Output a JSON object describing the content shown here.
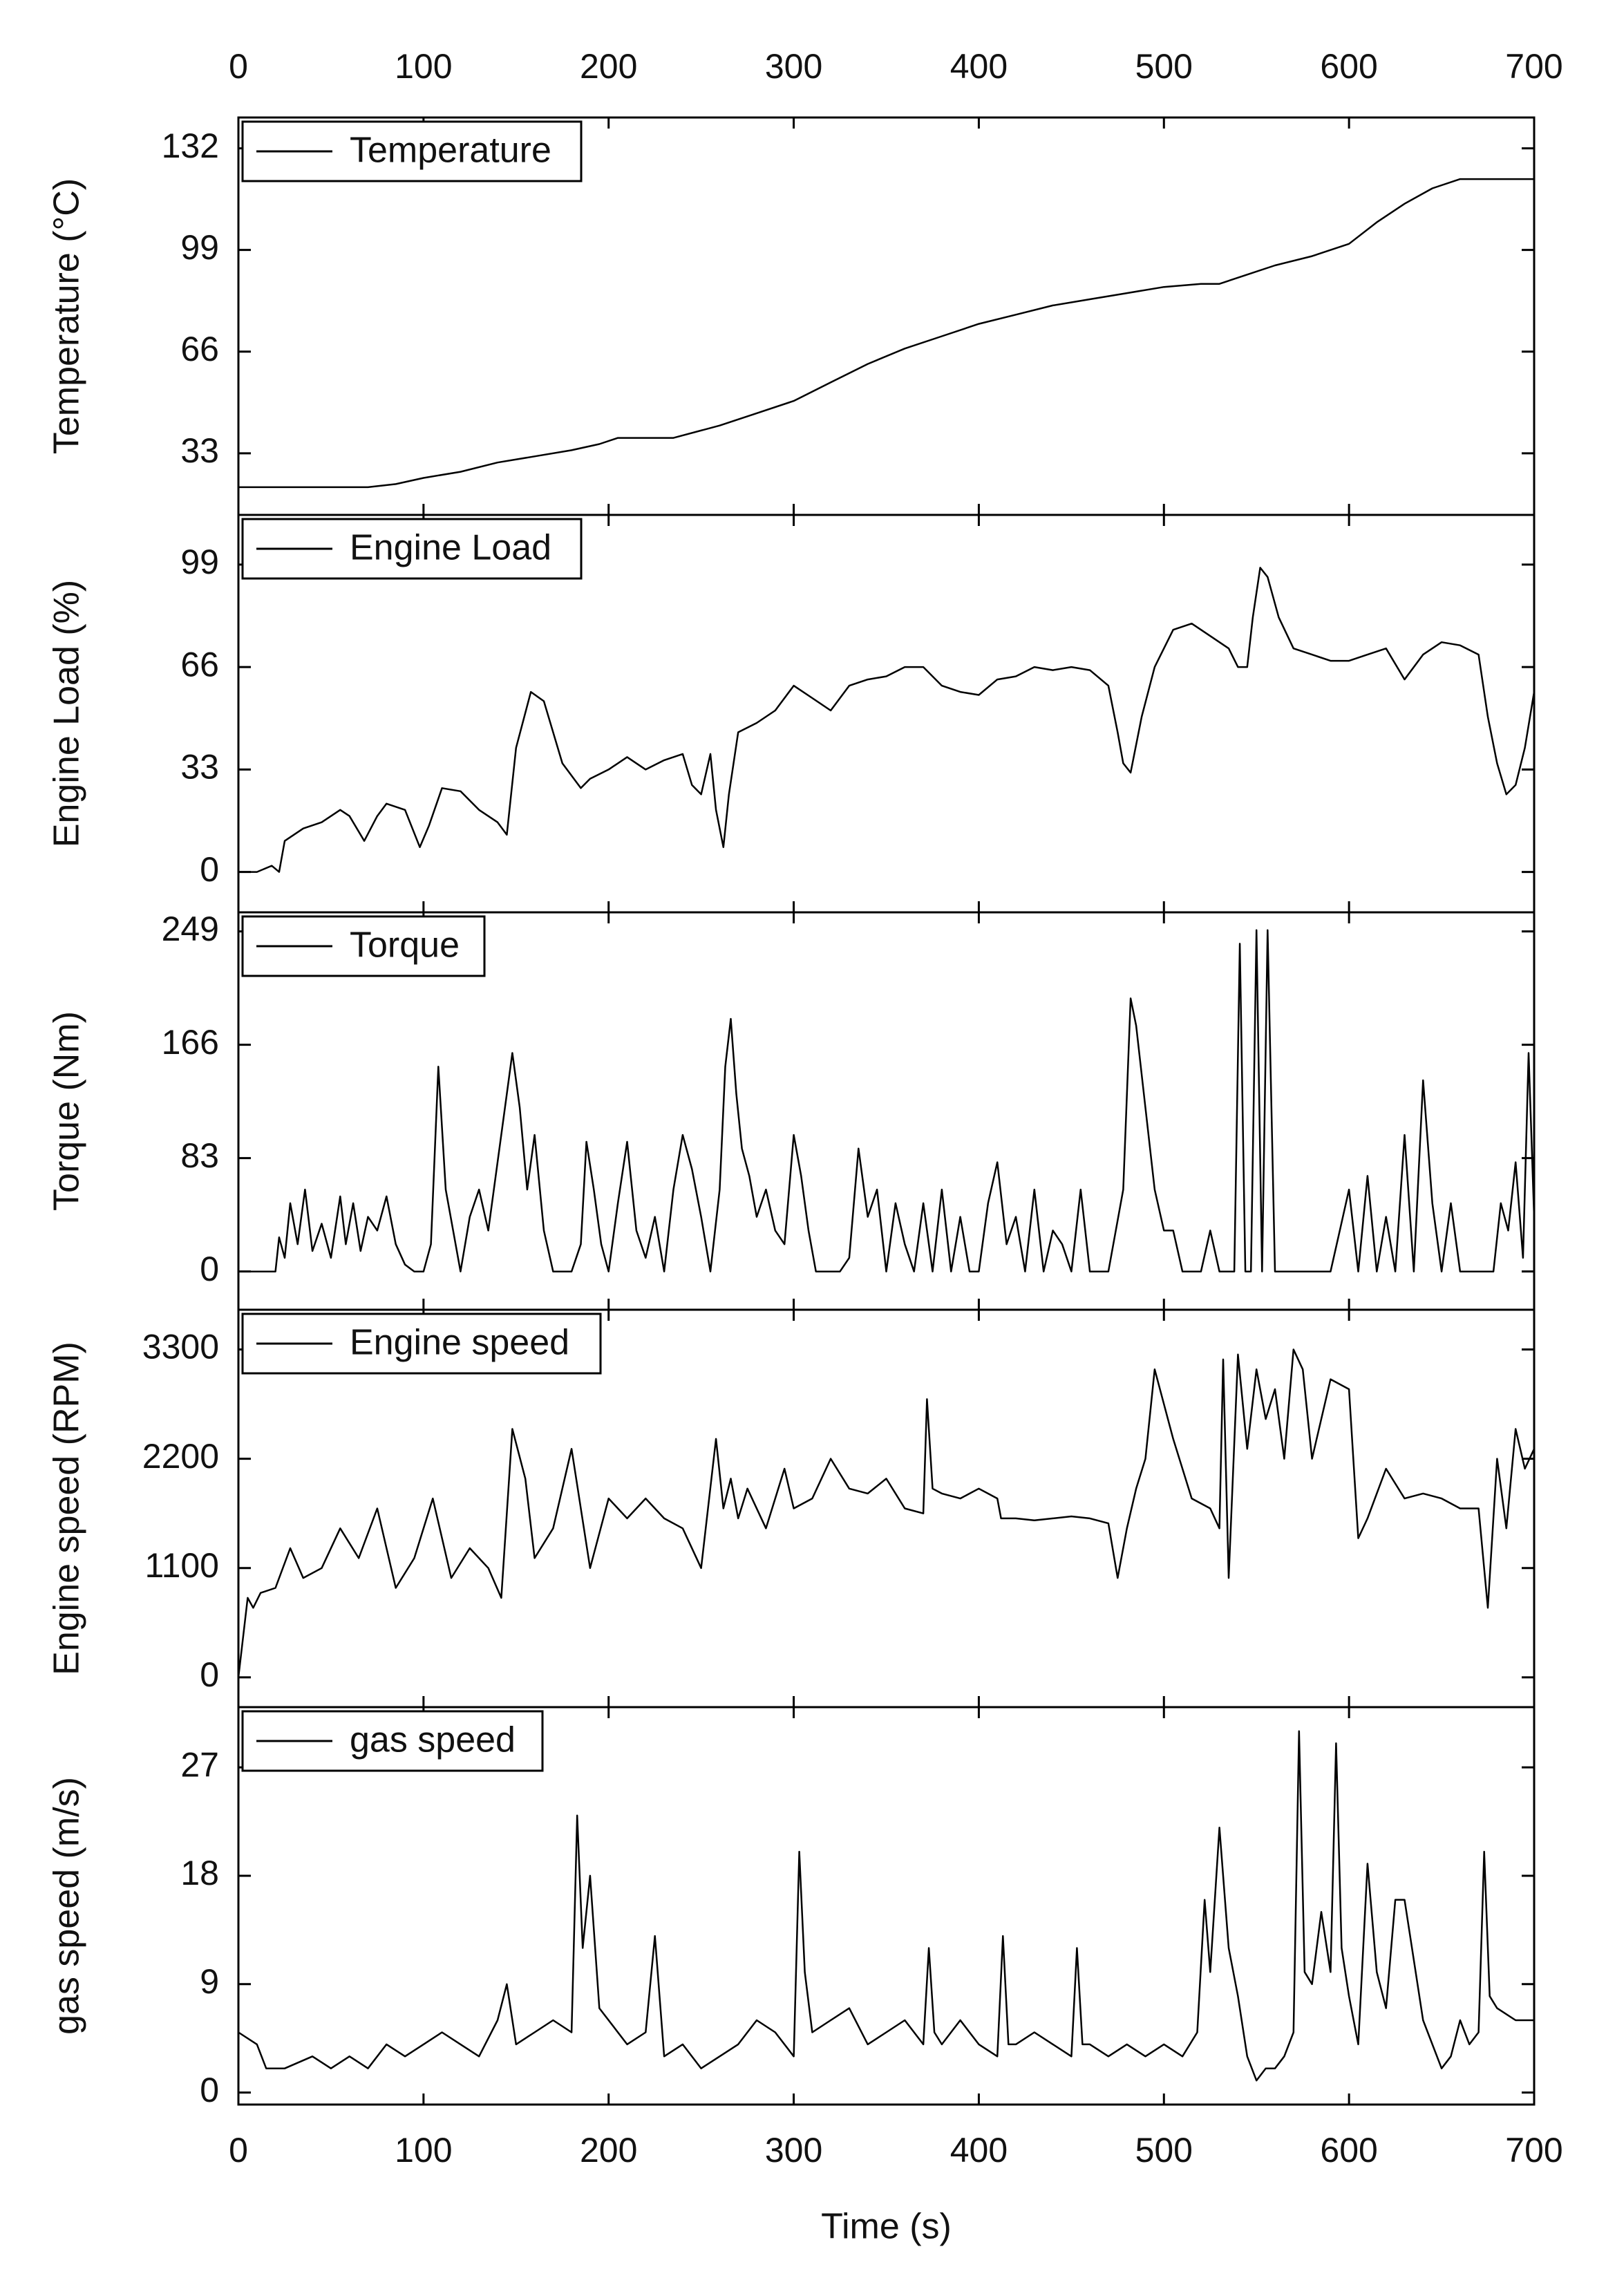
{
  "chart_data": {
    "type": "line",
    "layout": "stacked-panels-shared-x",
    "xlabel": "Time (s)",
    "xlim": [
      0,
      700
    ],
    "xticks": [
      0,
      100,
      200,
      300,
      400,
      500,
      600,
      700
    ],
    "colors": {
      "line": "#000000",
      "frame": "#000000",
      "background": "#ffffff"
    },
    "panels": [
      {
        "id": "temperature",
        "legend": "Temperature",
        "ylabel": "Temperature (°C)",
        "ylim": [
          13,
          142
        ],
        "yticks": [
          33,
          66,
          99,
          132
        ],
        "x": [
          0,
          40,
          70,
          85,
          100,
          120,
          140,
          160,
          180,
          195,
          205,
          215,
          235,
          260,
          280,
          300,
          320,
          340,
          360,
          380,
          400,
          420,
          440,
          460,
          480,
          500,
          520,
          530,
          545,
          560,
          580,
          600,
          615,
          630,
          645,
          660,
          700
        ],
        "y": [
          22,
          22,
          22,
          23,
          25,
          27,
          30,
          32,
          34,
          36,
          38,
          38,
          38,
          42,
          46,
          50,
          56,
          62,
          67,
          71,
          75,
          78,
          81,
          83,
          85,
          87,
          88,
          88,
          91,
          94,
          97,
          101,
          108,
          114,
          119,
          122,
          122
        ]
      },
      {
        "id": "engine_load",
        "legend": "Engine Load",
        "ylabel": "Engine Load (%)",
        "ylim": [
          -13,
          115
        ],
        "yticks": [
          0,
          33,
          66,
          99
        ],
        "x": [
          0,
          10,
          18,
          22,
          25,
          35,
          45,
          55,
          60,
          68,
          75,
          80,
          90,
          98,
          103,
          110,
          120,
          130,
          140,
          145,
          150,
          158,
          165,
          175,
          185,
          190,
          200,
          210,
          220,
          230,
          240,
          245,
          250,
          255,
          258,
          262,
          265,
          270,
          280,
          290,
          300,
          310,
          320,
          330,
          340,
          350,
          360,
          370,
          380,
          390,
          400,
          410,
          420,
          430,
          440,
          450,
          460,
          470,
          475,
          478,
          482,
          488,
          495,
          505,
          515,
          525,
          535,
          540,
          545,
          548,
          552,
          556,
          562,
          570,
          580,
          590,
          600,
          610,
          620,
          630,
          640,
          650,
          660,
          670,
          675,
          680,
          685,
          690,
          695,
          700
        ],
        "y": [
          0,
          0,
          2,
          0,
          10,
          14,
          16,
          20,
          18,
          10,
          18,
          22,
          20,
          8,
          15,
          27,
          26,
          20,
          16,
          12,
          40,
          58,
          55,
          35,
          27,
          30,
          33,
          37,
          33,
          36,
          38,
          28,
          25,
          38,
          20,
          8,
          25,
          45,
          48,
          52,
          60,
          56,
          52,
          60,
          62,
          63,
          66,
          66,
          60,
          58,
          57,
          62,
          63,
          66,
          65,
          66,
          65,
          60,
          45,
          35,
          32,
          50,
          66,
          78,
          80,
          76,
          72,
          66,
          66,
          82,
          98,
          95,
          82,
          72,
          70,
          68,
          68,
          70,
          72,
          62,
          70,
          74,
          73,
          70,
          50,
          35,
          25,
          28,
          40,
          58
        ]
      },
      {
        "id": "torque",
        "legend": "Torque",
        "ylabel": "Torque (Nm)",
        "ylim": [
          -28,
          263
        ],
        "yticks": [
          0,
          83,
          166,
          249
        ],
        "x": [
          0,
          20,
          22,
          25,
          28,
          32,
          36,
          40,
          45,
          50,
          55,
          58,
          62,
          66,
          70,
          75,
          80,
          85,
          90,
          95,
          100,
          104,
          108,
          112,
          116,
          120,
          125,
          130,
          135,
          140,
          145,
          148,
          152,
          156,
          160,
          165,
          170,
          175,
          180,
          185,
          188,
          192,
          196,
          200,
          205,
          210,
          215,
          220,
          225,
          230,
          235,
          240,
          245,
          250,
          255,
          260,
          263,
          266,
          269,
          272,
          276,
          280,
          285,
          290,
          295,
          300,
          304,
          308,
          312,
          318,
          325,
          330,
          335,
          340,
          345,
          350,
          355,
          360,
          365,
          370,
          375,
          380,
          385,
          390,
          395,
          400,
          405,
          410,
          415,
          420,
          425,
          430,
          435,
          440,
          445,
          450,
          455,
          460,
          470,
          478,
          482,
          485,
          490,
          495,
          500,
          505,
          510,
          520,
          525,
          530,
          535,
          538,
          541,
          544,
          547,
          550,
          553,
          556,
          560,
          565,
          570,
          590,
          595,
          600,
          605,
          610,
          615,
          620,
          625,
          630,
          635,
          640,
          645,
          650,
          655,
          660,
          670,
          678,
          682,
          686,
          690,
          694,
          697,
          700
        ],
        "y": [
          0,
          0,
          25,
          10,
          50,
          20,
          60,
          15,
          35,
          10,
          55,
          20,
          50,
          15,
          40,
          30,
          55,
          20,
          5,
          0,
          0,
          20,
          150,
          60,
          30,
          0,
          40,
          60,
          30,
          80,
          130,
          160,
          120,
          60,
          100,
          30,
          0,
          0,
          0,
          20,
          95,
          60,
          20,
          0,
          50,
          95,
          30,
          10,
          40,
          0,
          60,
          100,
          75,
          40,
          0,
          60,
          150,
          185,
          130,
          90,
          70,
          40,
          60,
          30,
          20,
          100,
          70,
          30,
          0,
          0,
          0,
          10,
          90,
          40,
          60,
          0,
          50,
          20,
          0,
          50,
          0,
          60,
          0,
          40,
          0,
          0,
          50,
          80,
          20,
          40,
          0,
          60,
          0,
          30,
          20,
          0,
          60,
          0,
          0,
          60,
          200,
          180,
          120,
          60,
          30,
          30,
          0,
          0,
          30,
          0,
          0,
          0,
          240,
          0,
          0,
          250,
          0,
          250,
          0,
          0,
          0,
          0,
          30,
          60,
          0,
          70,
          0,
          40,
          0,
          100,
          0,
          140,
          50,
          0,
          50,
          0,
          0,
          0,
          50,
          30,
          80,
          10,
          160,
          40
        ]
      },
      {
        "id": "engine_speed",
        "legend": "Engine speed",
        "ylabel": "Engine speed (RPM)",
        "ylim": [
          -300,
          3700
        ],
        "yticks": [
          0,
          1100,
          2200,
          3300
        ],
        "x": [
          0,
          5,
          8,
          12,
          20,
          28,
          35,
          45,
          55,
          65,
          75,
          85,
          95,
          105,
          115,
          125,
          135,
          142,
          148,
          155,
          160,
          170,
          180,
          190,
          200,
          210,
          220,
          230,
          240,
          250,
          258,
          262,
          266,
          270,
          275,
          285,
          295,
          300,
          310,
          320,
          330,
          340,
          350,
          360,
          370,
          372,
          375,
          380,
          390,
          400,
          410,
          412,
          420,
          430,
          440,
          450,
          460,
          470,
          475,
          480,
          485,
          490,
          495,
          505,
          515,
          525,
          530,
          532,
          535,
          540,
          545,
          550,
          555,
          560,
          565,
          570,
          575,
          580,
          590,
          600,
          605,
          610,
          620,
          630,
          640,
          650,
          660,
          670,
          675,
          680,
          685,
          690,
          695,
          700
        ],
        "y": [
          0,
          800,
          700,
          850,
          900,
          1300,
          1000,
          1100,
          1500,
          1200,
          1700,
          900,
          1200,
          1800,
          1000,
          1300,
          1100,
          800,
          2500,
          2000,
          1200,
          1500,
          2300,
          1100,
          1800,
          1600,
          1800,
          1600,
          1500,
          1100,
          2400,
          1700,
          2000,
          1600,
          1900,
          1500,
          2100,
          1700,
          1800,
          2200,
          1900,
          1850,
          2000,
          1700,
          1650,
          2800,
          1900,
          1850,
          1800,
          1900,
          1800,
          1600,
          1600,
          1580,
          1600,
          1620,
          1600,
          1550,
          1000,
          1500,
          1900,
          2200,
          3100,
          2400,
          1800,
          1700,
          1500,
          3200,
          1000,
          3250,
          2300,
          3100,
          2600,
          2900,
          2200,
          3300,
          3100,
          2200,
          3000,
          2900,
          1400,
          1600,
          2100,
          1800,
          1850,
          1800,
          1700,
          1700,
          700,
          2200,
          1500,
          2500,
          2100,
          2300
        ]
      },
      {
        "id": "gas_speed",
        "legend": "gas speed",
        "ylabel": "gas speed (m/s)",
        "ylim": [
          -1,
          32
        ],
        "yticks": [
          0,
          9,
          18,
          27
        ],
        "x": [
          0,
          10,
          15,
          25,
          40,
          50,
          60,
          70,
          80,
          90,
          100,
          110,
          120,
          130,
          140,
          145,
          150,
          160,
          170,
          180,
          183,
          186,
          190,
          195,
          200,
          210,
          220,
          225,
          230,
          240,
          250,
          260,
          270,
          280,
          290,
          300,
          303,
          306,
          310,
          320,
          330,
          340,
          350,
          360,
          370,
          373,
          376,
          380,
          390,
          400,
          410,
          413,
          416,
          420,
          430,
          440,
          450,
          453,
          456,
          460,
          470,
          480,
          490,
          500,
          510,
          518,
          522,
          525,
          530,
          535,
          540,
          545,
          550,
          555,
          560,
          565,
          570,
          573,
          576,
          580,
          585,
          590,
          593,
          596,
          600,
          605,
          610,
          615,
          620,
          625,
          630,
          640,
          650,
          655,
          660,
          665,
          670,
          673,
          676,
          680,
          690,
          700
        ],
        "y": [
          5,
          4,
          2,
          2,
          3,
          2,
          3,
          2,
          4,
          3,
          4,
          5,
          4,
          3,
          6,
          9,
          4,
          5,
          6,
          5,
          23,
          12,
          18,
          7,
          6,
          4,
          5,
          13,
          3,
          4,
          2,
          3,
          4,
          6,
          5,
          3,
          20,
          10,
          5,
          6,
          7,
          4,
          5,
          6,
          4,
          12,
          5,
          4,
          6,
          4,
          3,
          13,
          4,
          4,
          5,
          4,
          3,
          12,
          4,
          4,
          3,
          4,
          3,
          4,
          3,
          5,
          16,
          10,
          22,
          12,
          8,
          3,
          1,
          2,
          2,
          3,
          5,
          30,
          10,
          9,
          15,
          10,
          29,
          12,
          8,
          4,
          19,
          10,
          7,
          16,
          16,
          6,
          2,
          3,
          6,
          4,
          5,
          20,
          8,
          7,
          6,
          6
        ]
      }
    ]
  }
}
